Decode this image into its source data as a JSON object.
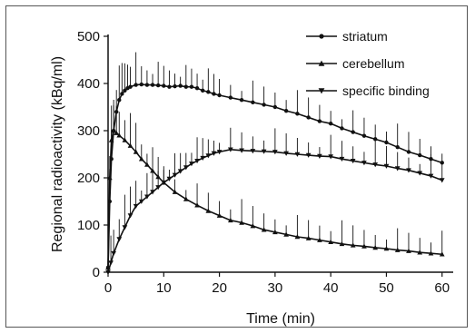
{
  "chart_data": {
    "type": "line",
    "title": "",
    "xlabel": "Time (min)",
    "ylabel": "Regional radioactivity (kBq/ml)",
    "xlim": [
      0,
      62
    ],
    "ylim": [
      0,
      500
    ],
    "x_ticks": [
      0,
      10,
      20,
      30,
      40,
      50,
      60
    ],
    "y_ticks": [
      0,
      100,
      200,
      300,
      400,
      500
    ],
    "grid": false,
    "legend_position": "top-right",
    "series": [
      {
        "name": "striatum",
        "marker": "circle",
        "x": [
          0,
          0.3,
          0.6,
          1,
          1.5,
          2,
          2.5,
          3,
          3.5,
          4,
          5,
          6,
          7,
          8,
          9,
          10,
          11,
          12,
          13,
          14,
          15,
          16,
          17,
          18,
          19,
          20,
          22,
          24,
          26,
          28,
          30,
          32,
          34,
          36,
          38,
          40,
          42,
          44,
          46,
          48,
          50,
          52,
          54,
          56,
          58,
          60
        ],
        "y": [
          10,
          150,
          240,
          300,
          340,
          365,
          378,
          385,
          390,
          393,
          397,
          398,
          397,
          397,
          396,
          395,
          393,
          394,
          395,
          393,
          393,
          390,
          385,
          382,
          378,
          375,
          370,
          365,
          360,
          355,
          350,
          342,
          336,
          328,
          320,
          315,
          305,
          297,
          289,
          282,
          275,
          265,
          255,
          248,
          240,
          232
        ]
      },
      {
        "name": "cerebellum",
        "marker": "triangle-up",
        "x": [
          0,
          0.3,
          0.6,
          1,
          1.5,
          2,
          3,
          4,
          5,
          6,
          7,
          8,
          9,
          10,
          12,
          14,
          16,
          18,
          20,
          22,
          24,
          26,
          28,
          30,
          32,
          34,
          36,
          38,
          40,
          42,
          44,
          46,
          48,
          50,
          52,
          54,
          56,
          58,
          60
        ],
        "y": [
          10,
          200,
          280,
          300,
          295,
          290,
          280,
          268,
          255,
          240,
          228,
          215,
          202,
          190,
          170,
          155,
          142,
          130,
          120,
          110,
          105,
          98,
          90,
          85,
          80,
          75,
          72,
          68,
          64,
          60,
          57,
          55,
          52,
          50,
          47,
          45,
          42,
          40,
          38
        ]
      },
      {
        "name": "specific binding",
        "marker": "triangle-down",
        "x": [
          0,
          0.5,
          1,
          2,
          3,
          4,
          5,
          6,
          7,
          8,
          9,
          10,
          11,
          12,
          13,
          14,
          15,
          16,
          17,
          18,
          19,
          20,
          22,
          24,
          26,
          28,
          30,
          32,
          34,
          36,
          38,
          40,
          42,
          44,
          46,
          48,
          50,
          52,
          54,
          56,
          58,
          60
        ],
        "y": [
          0,
          20,
          40,
          70,
          95,
          120,
          140,
          150,
          160,
          170,
          180,
          190,
          198,
          206,
          214,
          222,
          230,
          236,
          242,
          247,
          252,
          255,
          260,
          258,
          257,
          256,
          255,
          252,
          250,
          248,
          246,
          245,
          240,
          236,
          232,
          228,
          225,
          220,
          216,
          210,
          204,
          195
        ]
      }
    ]
  }
}
